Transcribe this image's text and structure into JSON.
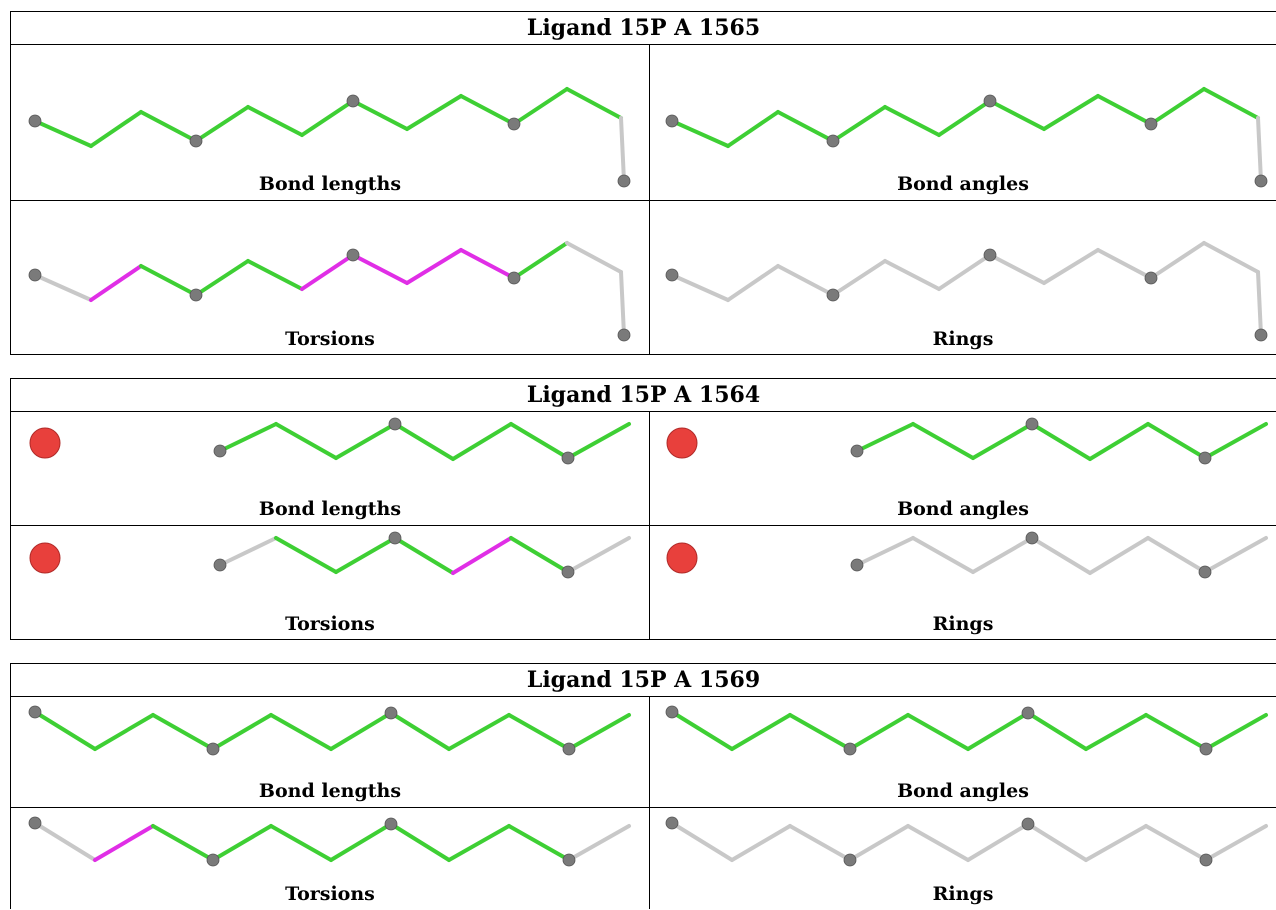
{
  "colors": {
    "ok": "#3ecf34",
    "outlier": "#e02ee6",
    "na": "#c8c8c8",
    "atom": "#7a7a7a",
    "oxygen": "#e8403c"
  },
  "panels": [
    {
      "title": "Ligand 15P A 1565",
      "cells": [
        {
          "label": "Bond lengths",
          "bond_colors": [
            "ok",
            "ok",
            "ok",
            "ok",
            "ok",
            "ok",
            "ok",
            "ok",
            "ok",
            "ok",
            "ok"
          ]
        },
        {
          "label": "Bond angles",
          "bond_colors": [
            "ok",
            "ok",
            "ok",
            "ok",
            "ok",
            "ok",
            "ok",
            "ok",
            "ok",
            "ok",
            "ok"
          ]
        },
        {
          "label": "Torsions",
          "bond_colors": [
            "na",
            "outlier",
            "ok",
            "ok",
            "ok",
            "outlier",
            "outlier",
            "outlier",
            "outlier",
            "ok",
            "na"
          ]
        },
        {
          "label": "Rings",
          "bond_colors": [
            "na",
            "na",
            "na",
            "na",
            "na",
            "na",
            "na",
            "na",
            "na",
            "na",
            "na"
          ]
        }
      ]
    },
    {
      "title": "Ligand 15P A 1564",
      "cells": [
        {
          "label": "Bond lengths",
          "bond_colors": [
            "ok",
            "ok",
            "ok",
            "ok",
            "ok",
            "ok",
            "ok"
          ]
        },
        {
          "label": "Bond angles",
          "bond_colors": [
            "ok",
            "ok",
            "ok",
            "ok",
            "ok",
            "ok",
            "ok"
          ]
        },
        {
          "label": "Torsions",
          "bond_colors": [
            "na",
            "ok",
            "ok",
            "ok",
            "outlier",
            "ok",
            "na"
          ]
        },
        {
          "label": "Rings",
          "bond_colors": [
            "na",
            "na",
            "na",
            "na",
            "na",
            "na",
            "na"
          ]
        }
      ]
    },
    {
      "title": "Ligand 15P A 1569",
      "cells": [
        {
          "label": "Bond lengths",
          "bond_colors": [
            "ok",
            "ok",
            "ok",
            "ok",
            "ok",
            "ok",
            "ok",
            "ok",
            "ok",
            "ok"
          ]
        },
        {
          "label": "Bond angles",
          "bond_colors": [
            "ok",
            "ok",
            "ok",
            "ok",
            "ok",
            "ok",
            "ok",
            "ok",
            "ok",
            "ok"
          ]
        },
        {
          "label": "Torsions",
          "bond_colors": [
            "na",
            "outlier",
            "ok",
            "ok",
            "ok",
            "ok",
            "ok",
            "ok",
            "ok",
            "na"
          ]
        },
        {
          "label": "Rings",
          "bond_colors": [
            "na",
            "na",
            "na",
            "na",
            "na",
            "na",
            "na",
            "na",
            "na",
            "na"
          ]
        }
      ]
    }
  ]
}
